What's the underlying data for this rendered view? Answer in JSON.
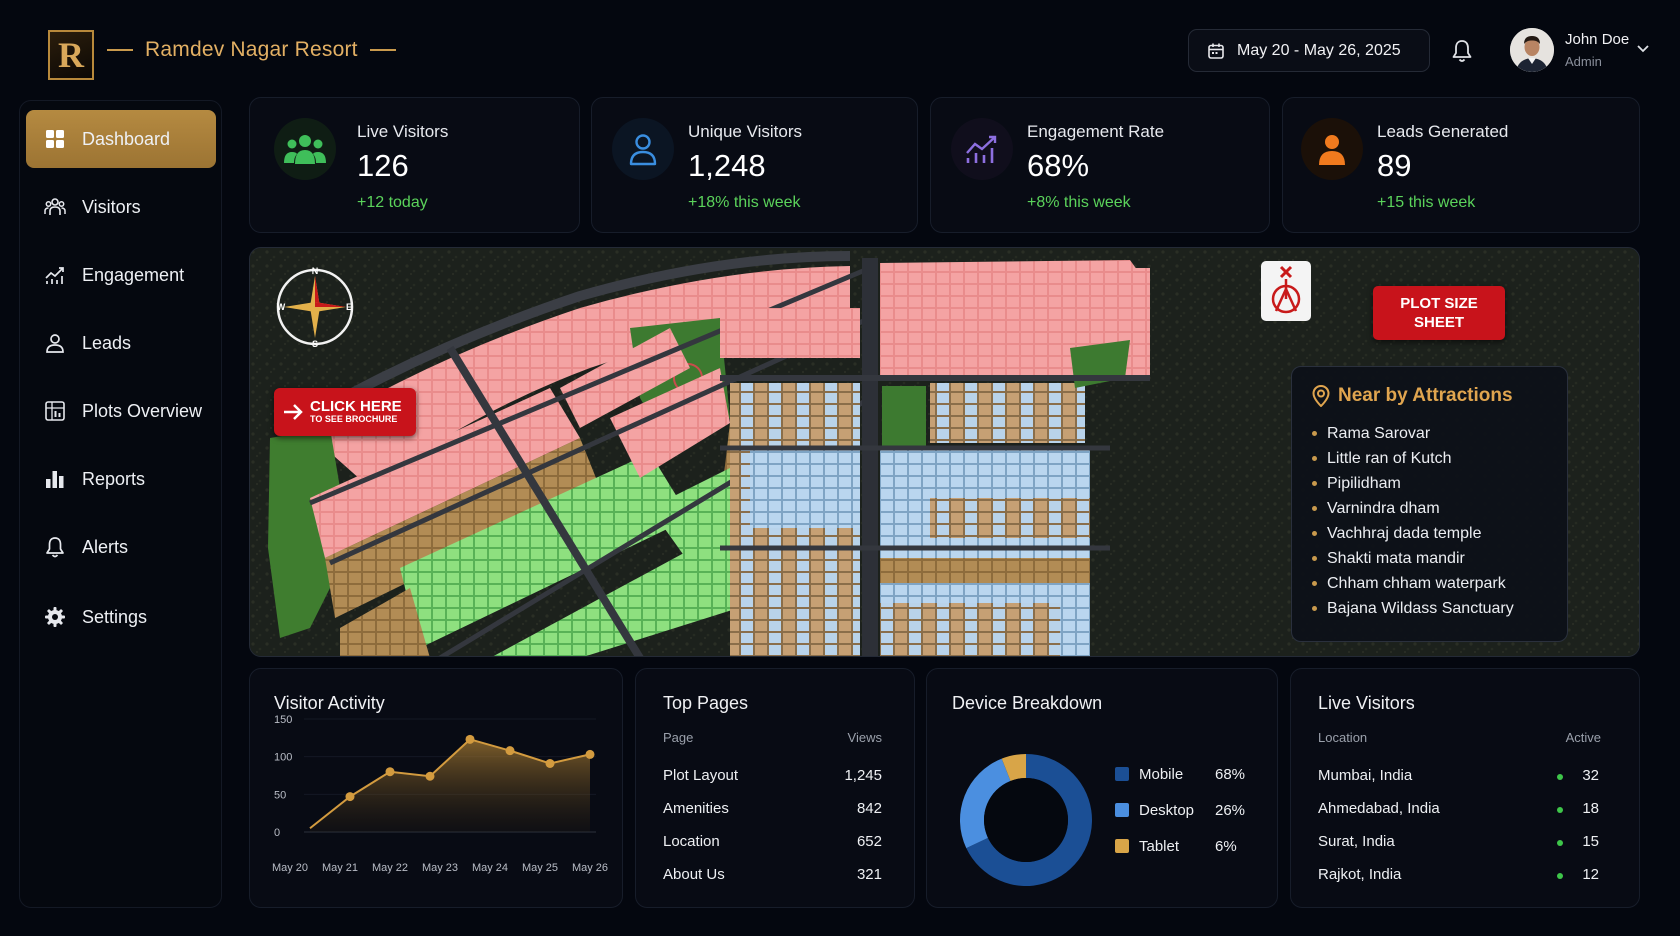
{
  "header": {
    "brand": "Ramdev Nagar Resort",
    "logo_letter": "R",
    "date_range": "May 20 - May 26, 2025",
    "user_name": "John Doe",
    "user_role": "Admin"
  },
  "sidebar": {
    "items": [
      {
        "label": "Dashboard",
        "icon": "grid-icon",
        "active": true
      },
      {
        "label": "Visitors",
        "icon": "users-icon"
      },
      {
        "label": "Engagement",
        "icon": "trend-chart-icon"
      },
      {
        "label": "Leads",
        "icon": "user-icon"
      },
      {
        "label": "Plots Overview",
        "icon": "plots-grid-icon"
      },
      {
        "label": "Reports",
        "icon": "bar-chart-icon"
      },
      {
        "label": "Alerts",
        "icon": "bell-icon"
      },
      {
        "label": "Settings",
        "icon": "gear-icon"
      }
    ]
  },
  "stats": [
    {
      "title": "Live Visitors",
      "value": "126",
      "delta": "+12 today",
      "icon": "group-icon",
      "color": "#3fbf5a"
    },
    {
      "title": "Unique Visitors",
      "value": "1,248",
      "delta": "+18% this week",
      "icon": "user-icon",
      "color": "#3a8ee0"
    },
    {
      "title": "Engagement Rate",
      "value": "68%",
      "delta": "+8% this week",
      "icon": "trend-chart-icon",
      "color": "#8d6fe0"
    },
    {
      "title": "Leads Generated",
      "value": "89",
      "delta": "+15 this week",
      "icon": "person-icon",
      "color": "#f07a1e"
    }
  ],
  "map": {
    "cta_line1": "CLICK HERE",
    "cta_line2": "TO SEE BROCHURE",
    "plot_btn_line1": "PLOT SIZE",
    "plot_btn_line2": "SHEET",
    "compass": {
      "n": "N",
      "s": "S",
      "e": "E",
      "w": "W"
    },
    "attractions_title": "Near by Attractions",
    "attractions": [
      "Rama Sarovar",
      "Little ran of Kutch",
      "Pipilidham",
      "Varnindra dham",
      "Vachhraj dada temple",
      "Shakti mata mandir",
      "Chham chham waterpark",
      "Bajana Wildass Sanctuary"
    ]
  },
  "visitor_activity": {
    "title": "Visitor Activity"
  },
  "chart_data": {
    "type": "area",
    "categories": [
      "May 20",
      "May 21",
      "May 22",
      "May 23",
      "May 24",
      "May 25",
      "May 26"
    ],
    "x": [
      "May 20",
      "",
      "May 21",
      "May 22",
      "May 23",
      "May 24",
      "May 25",
      "May 26"
    ],
    "values": [
      5,
      47,
      80,
      74,
      123,
      108,
      91,
      103
    ],
    "yticks": [
      0,
      50,
      100,
      150
    ],
    "ylim": [
      0,
      150
    ],
    "color": "#d39b3f"
  },
  "top_pages": {
    "title": "Top Pages",
    "col_page": "Page",
    "col_views": "Views",
    "rows": [
      {
        "page": "Plot Layout",
        "views": "1,245"
      },
      {
        "page": "Amenities",
        "views": "842"
      },
      {
        "page": "Location",
        "views": "652"
      },
      {
        "page": "About Us",
        "views": "321"
      }
    ]
  },
  "device_breakdown": {
    "title": "Device Breakdown",
    "items": [
      {
        "name": "Mobile",
        "pct": "68%",
        "value": 68,
        "color": "#1b4f95"
      },
      {
        "name": "Desktop",
        "pct": "26%",
        "value": 26,
        "color": "#4b8fe0"
      },
      {
        "name": "Tablet",
        "pct": "6%",
        "value": 6,
        "color": "#d8a548"
      }
    ]
  },
  "live_visitors": {
    "title": "Live Visitors",
    "col_location": "Location",
    "col_active": "Active",
    "rows": [
      {
        "location": "Mumbai, India",
        "active": "32"
      },
      {
        "location": "Ahmedabad, India",
        "active": "18"
      },
      {
        "location": "Surat, India",
        "active": "15"
      },
      {
        "location": "Rajkot, India",
        "active": "12"
      }
    ]
  }
}
